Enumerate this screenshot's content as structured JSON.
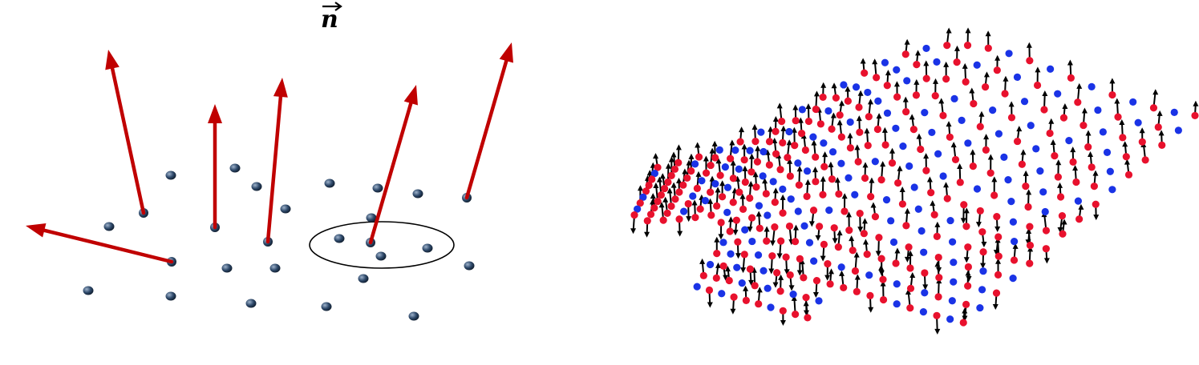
{
  "left_panel": {
    "vector_label": "n",
    "colors": {
      "normal_arrow": "#c00000",
      "point": "#2f4a6b",
      "point_highlight": "#7a93b3",
      "ellipse": "#000000"
    }
  },
  "right_panel": {
    "colors": {
      "oriented_point": "#e8112d",
      "plain_point": "#1a33e6",
      "arrow": "#000000"
    }
  }
}
